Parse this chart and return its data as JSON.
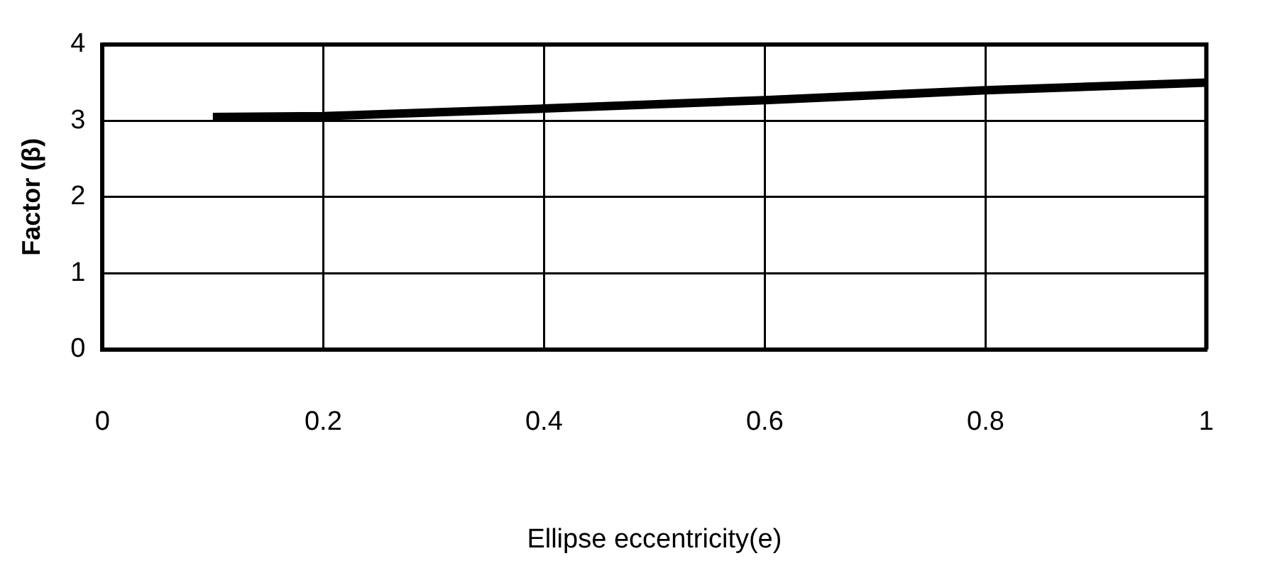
{
  "chart_data": {
    "type": "line",
    "xlabel": "Ellipse eccentricity(e)",
    "ylabel": "Factor (β)",
    "x": [
      0.1,
      0.2,
      0.4,
      0.6,
      0.8,
      1.0
    ],
    "series": [
      {
        "color": "#000000",
        "values": [
          3.05,
          3.06,
          3.16,
          3.27,
          3.4,
          3.5
        ]
      }
    ],
    "xlim": [
      0,
      1
    ],
    "xticks": [
      0,
      0.2,
      0.4,
      0.6,
      0.8,
      1
    ],
    "ylim": [
      0,
      4
    ],
    "yticks": [
      0,
      1,
      2,
      3,
      4
    ],
    "grid": true,
    "legend": false,
    "marker": "none",
    "line_style": "solid"
  }
}
